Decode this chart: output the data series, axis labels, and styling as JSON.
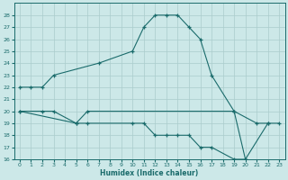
{
  "xlabel": "Humidex (Indice chaleur)",
  "bg_color": "#cce8e8",
  "line_color": "#1a6b6b",
  "grid_color": "#aacccc",
  "ylim": [
    16,
    29
  ],
  "xlim": [
    -0.5,
    23.5
  ],
  "yticks": [
    16,
    17,
    18,
    19,
    20,
    21,
    22,
    23,
    24,
    25,
    26,
    27,
    28
  ],
  "xticks": [
    0,
    1,
    2,
    3,
    4,
    5,
    6,
    7,
    8,
    9,
    10,
    11,
    12,
    13,
    14,
    15,
    16,
    17,
    18,
    19,
    20,
    21,
    22,
    23
  ],
  "curve1_x": [
    0,
    1,
    2,
    3,
    7,
    10,
    11,
    12,
    13,
    14,
    15,
    16,
    17,
    19,
    20,
    22,
    23
  ],
  "curve1_y": [
    22,
    22,
    22,
    23,
    24,
    25,
    27,
    28,
    28,
    28,
    27,
    26,
    23,
    20,
    16,
    19,
    19
  ],
  "curve2_x": [
    0,
    2,
    3,
    5,
    6,
    19,
    21,
    22
  ],
  "curve2_y": [
    20,
    20,
    20,
    19,
    20,
    20,
    19,
    19
  ],
  "curve3_x": [
    0,
    5,
    6,
    10,
    11,
    12,
    13,
    14,
    15,
    16,
    17,
    19,
    20
  ],
  "curve3_y": [
    20,
    19,
    19,
    19,
    19,
    18,
    18,
    18,
    18,
    17,
    17,
    16,
    16
  ]
}
